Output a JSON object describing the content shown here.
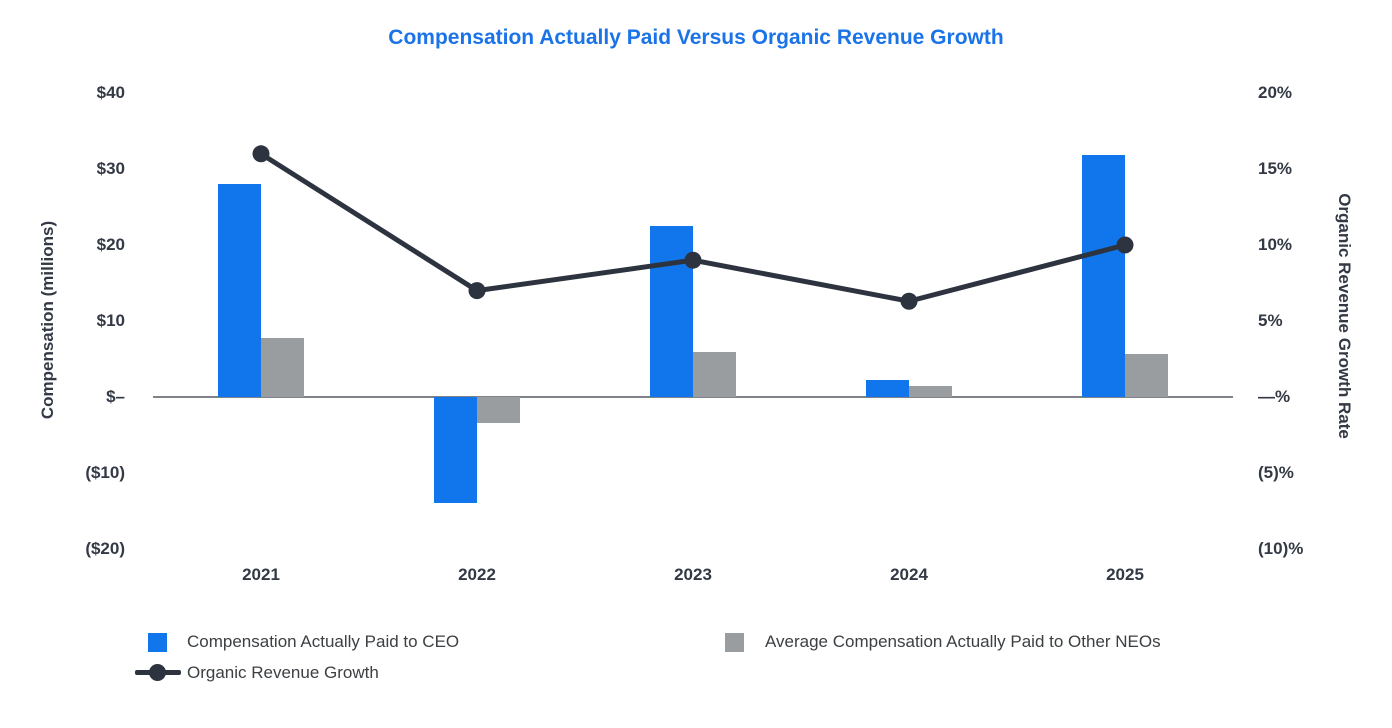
{
  "chart_data": {
    "type": "bar+line",
    "title": "Compensation Actually Paid Versus Organic Revenue Growth",
    "title_color": "#1a73e8",
    "categories": [
      "2021",
      "2022",
      "2023",
      "2024",
      "2025"
    ],
    "series": [
      {
        "name": "Compensation Actually Paid to CEO",
        "type": "bar",
        "axis": "left",
        "color": "#1176ec",
        "values": [
          28,
          -13.9,
          22.5,
          2.2,
          31.8
        ]
      },
      {
        "name": "Average Compensation Actually Paid to Other NEOs",
        "type": "bar",
        "axis": "left",
        "color": "#9a9da0",
        "values": [
          7.7,
          -3.4,
          5.9,
          1.4,
          5.6
        ]
      },
      {
        "name": "Organic Revenue Growth",
        "type": "line",
        "axis": "right",
        "color": "#2d3440",
        "values": [
          16,
          7,
          9,
          6.3,
          10
        ]
      }
    ],
    "left_axis": {
      "label": "Compensation (millions)",
      "ticks": [
        "$40",
        "$30",
        "$20",
        "$10",
        "$–",
        "($10)",
        "($20)"
      ],
      "tick_values": [
        40,
        30,
        20,
        10,
        0,
        -10,
        -20
      ],
      "range": [
        -20,
        40
      ],
      "unit": "USD millions"
    },
    "right_axis": {
      "label": "Organic Revenue Growth Rate",
      "ticks": [
        "20%",
        "15%",
        "10%",
        "5%",
        "—%",
        "(5)%",
        "(10)%"
      ],
      "tick_values": [
        20,
        15,
        10,
        5,
        0,
        -5,
        -10
      ],
      "range": [
        -10,
        20
      ],
      "unit": "percent"
    },
    "grid": false,
    "legend_position": "bottom",
    "axis_line_color": "#7f8387"
  }
}
